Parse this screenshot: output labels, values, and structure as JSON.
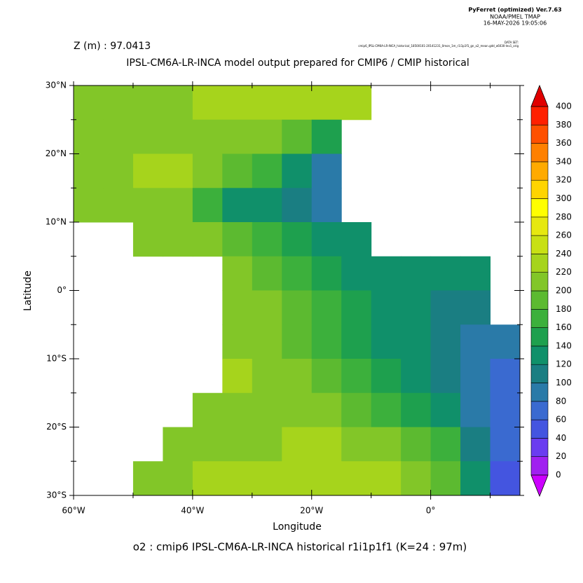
{
  "chart_data": {
    "type": "heatmap",
    "header": [
      "PyFerret (optimized) Ver.7.63",
      "NOAA/PMEL TMAP",
      "16-MAY-2026 19:05:06"
    ],
    "dataset_label": "DATA SET:",
    "dataset": "cmip6_IPSL-CM6A-LR-INCA_historical_18500101-20141231_0mon_1m_r1i1p1f1_gn_o2_mean.gdd_o6030-lev1_orig",
    "depth_label": "Z (m) : 97.0413",
    "title": "IPSL-CM6A-LR-INCA model output prepared for CMIP6 / CMIP historical",
    "x_label": "Longitude",
    "y_label": "Latitude",
    "footer": "o2 : cmip6 IPSL-CM6A-LR-INCA historical r1i1p1f1    (K=24 : 97m)",
    "xlim": [
      -60,
      15
    ],
    "ylim": [
      -30,
      30
    ],
    "xticks": [
      {
        "value": -60,
        "label": "60°W"
      },
      {
        "value": -40,
        "label": "40°W"
      },
      {
        "value": -20,
        "label": "20°W"
      },
      {
        "value": 0,
        "label": "0°"
      }
    ],
    "xminor": [
      -50,
      -30,
      -10,
      10
    ],
    "yticks": [
      {
        "value": 30,
        "label": "30°N"
      },
      {
        "value": 20,
        "label": "20°N"
      },
      {
        "value": 10,
        "label": "10°N"
      },
      {
        "value": 0,
        "label": "0°"
      },
      {
        "value": -10,
        "label": "10°S"
      },
      {
        "value": -20,
        "label": "20°S"
      },
      {
        "value": -30,
        "label": "30°S"
      }
    ],
    "yminor": [
      25,
      15,
      5,
      -5,
      -15,
      -25
    ],
    "lon": [
      -57.5,
      -52.5,
      -47.5,
      -42.5,
      -37.5,
      -32.5,
      -27.5,
      -22.5,
      -17.5,
      -12.5,
      -7.5,
      -2.5,
      2.5,
      7.5,
      12.5
    ],
    "lat": [
      27.5,
      22.5,
      17.5,
      12.5,
      7.5,
      2.5,
      -2.5,
      -7.5,
      -12.5,
      -17.5,
      -22.5,
      -27.5
    ],
    "values": [
      [
        210,
        212,
        215,
        218,
        220,
        222,
        225,
        228,
        230,
        228,
        null,
        null,
        null,
        null,
        null
      ],
      [
        212,
        214,
        216,
        218,
        218,
        216,
        210,
        195,
        150,
        null,
        null,
        null,
        null,
        null,
        null
      ],
      [
        210,
        215,
        220,
        220,
        215,
        195,
        160,
        120,
        80,
        null,
        null,
        null,
        null,
        null,
        null
      ],
      [
        200,
        205,
        210,
        200,
        170,
        130,
        120,
        110,
        90,
        null,
        null,
        null,
        null,
        null,
        null
      ],
      [
        null,
        null,
        210,
        205,
        200,
        185,
        160,
        140,
        130,
        125,
        null,
        null,
        null,
        null,
        null
      ],
      [
        null,
        null,
        null,
        null,
        null,
        200,
        185,
        165,
        145,
        135,
        130,
        130,
        130,
        125,
        null
      ],
      [
        null,
        null,
        null,
        null,
        null,
        210,
        200,
        180,
        160,
        145,
        135,
        125,
        115,
        105,
        null
      ],
      [
        null,
        null,
        null,
        null,
        null,
        215,
        210,
        195,
        175,
        150,
        135,
        120,
        110,
        95,
        80
      ],
      [
        null,
        null,
        null,
        null,
        null,
        220,
        215,
        205,
        190,
        170,
        150,
        130,
        110,
        90,
        75
      ],
      [
        null,
        null,
        null,
        null,
        215,
        215,
        210,
        210,
        200,
        190,
        175,
        150,
        120,
        90,
        70
      ],
      [
        null,
        null,
        null,
        210,
        210,
        215,
        215,
        220,
        220,
        215,
        205,
        190,
        160,
        110,
        60
      ],
      [
        null,
        null,
        200,
        210,
        220,
        225,
        230,
        235,
        235,
        230,
        225,
        215,
        190,
        130,
        50
      ]
    ],
    "levels": [
      0,
      20,
      40,
      60,
      80,
      100,
      120,
      140,
      160,
      180,
      200,
      220,
      240,
      260,
      280,
      300,
      320,
      340,
      360,
      380,
      400
    ],
    "colors": [
      "#cc00ff",
      "#a020f0",
      "#6a3cf0",
      "#4455e0",
      "#3a6ad0",
      "#2a7aa8",
      "#1a7e82",
      "#10906a",
      "#1ea04e",
      "#3cb03c",
      "#5cba30",
      "#82c628",
      "#a6d41c",
      "#c8e014",
      "#e6e810",
      "#ffff00",
      "#ffd400",
      "#ffaa00",
      "#ff8000",
      "#ff5000",
      "#ff2000",
      "#e00000",
      "#a00000"
    ]
  }
}
